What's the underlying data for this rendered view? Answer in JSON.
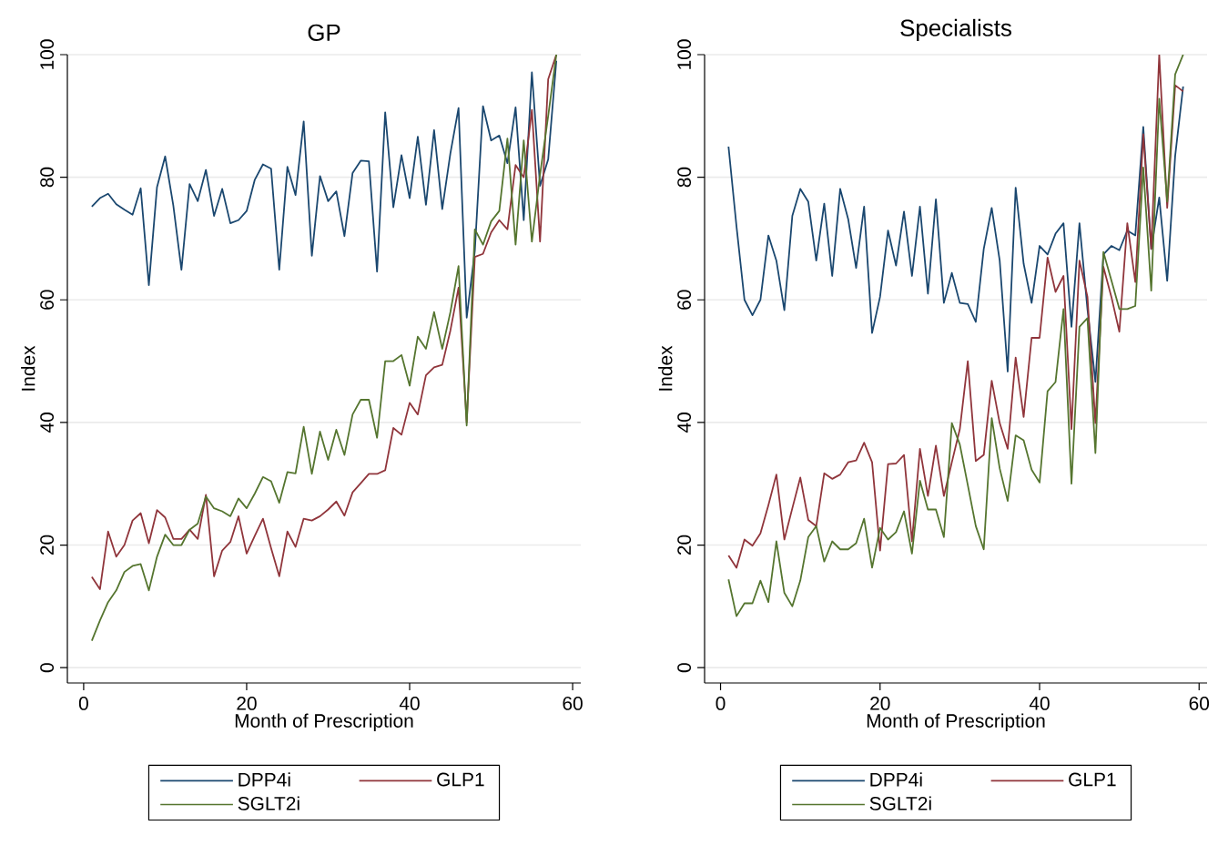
{
  "chart_data": [
    {
      "type": "line",
      "title": "GP",
      "xlabel": "Month of Prescription",
      "ylabel": "Index",
      "x": [
        1,
        2,
        3,
        4,
        5,
        6,
        7,
        8,
        9,
        10,
        11,
        12,
        13,
        14,
        15,
        16,
        17,
        18,
        19,
        20,
        21,
        22,
        23,
        24,
        25,
        26,
        27,
        28,
        29,
        30,
        31,
        32,
        33,
        34,
        35,
        36,
        37,
        38,
        39,
        40,
        41,
        42,
        43,
        44,
        45,
        46,
        47,
        48,
        49,
        50,
        51,
        52,
        53,
        54,
        55,
        56,
        57,
        58
      ],
      "series": [
        {
          "name": "DPP4i",
          "color": "#1a476f",
          "values": [
            75.2,
            76.6,
            77.3,
            75.6,
            74.7,
            73.9,
            78.2,
            62.4,
            78.4,
            83.4,
            75.4,
            64.9,
            78.9,
            76.1,
            81.2,
            73.7,
            78.1,
            72.5,
            73,
            74.5,
            79.6,
            82.1,
            81.4,
            64.9,
            81.7,
            77.1,
            89.1,
            67.2,
            80.2,
            76.1,
            77.7,
            70.4,
            80.7,
            82.7,
            82.6,
            64.6,
            90.6,
            75.1,
            83.6,
            76.6,
            86.6,
            75.5,
            87.7,
            74.8,
            83.9,
            91.3,
            57.1,
            68,
            91.6,
            86,
            86.8,
            82.3,
            91.4,
            73,
            97.1,
            78.6,
            82.9,
            99
          ]
        },
        {
          "name": "GLP1",
          "color": "#90353b",
          "values": [
            14.8,
            12.8,
            22.2,
            18.1,
            20,
            24,
            25.2,
            20.3,
            25.7,
            24.5,
            21,
            21,
            22.5,
            21,
            28.2,
            14.9,
            19.1,
            20.5,
            24.7,
            18.6,
            21.5,
            24.3,
            19.5,
            14.9,
            22.2,
            19.7,
            24.3,
            24,
            24.7,
            25.8,
            27.1,
            24.8,
            28.6,
            30.1,
            31.6,
            31.6,
            32.2,
            39.1,
            38,
            43.2,
            41.3,
            47.7,
            49,
            49.4,
            55,
            62,
            40,
            67,
            67.5,
            71,
            73,
            71.5,
            82,
            80,
            91,
            69.5,
            96,
            100
          ]
        },
        {
          "name": "SGLT2i",
          "color": "#55752f",
          "values": [
            4.4,
            7.7,
            10.7,
            12.6,
            15.6,
            16.6,
            16.9,
            12.6,
            18.1,
            21.7,
            20,
            20,
            22.5,
            23.5,
            27.9,
            26,
            25.5,
            24.7,
            27.6,
            26,
            28.4,
            31.1,
            30.4,
            26.9,
            31.9,
            31.7,
            39.3,
            31.6,
            38.5,
            33.9,
            38.8,
            34.7,
            41.3,
            43.7,
            43.7,
            37.5,
            50,
            50,
            51,
            46,
            54,
            52,
            58,
            52,
            58,
            65.5,
            39.5,
            71.5,
            69,
            72.8,
            74.5,
            86.3,
            69,
            86,
            69.5,
            80.4,
            90,
            100
          ]
        }
      ],
      "xlim": [
        -2,
        61
      ],
      "ylim": [
        -2.5,
        100
      ],
      "xticks": [
        0,
        20,
        40,
        60
      ],
      "yticks": [
        0,
        20,
        40,
        60,
        80,
        100
      ],
      "grid": "y",
      "legend": "bottom"
    },
    {
      "type": "line",
      "title": "Specialists",
      "xlabel": "Month of Prescription",
      "ylabel": "Index",
      "x": [
        1,
        2,
        3,
        4,
        5,
        6,
        7,
        8,
        9,
        10,
        11,
        12,
        13,
        14,
        15,
        16,
        17,
        18,
        19,
        20,
        21,
        22,
        23,
        24,
        25,
        26,
        27,
        28,
        29,
        30,
        31,
        32,
        33,
        34,
        35,
        36,
        37,
        38,
        39,
        40,
        41,
        42,
        43,
        44,
        45,
        46,
        47,
        48,
        49,
        50,
        51,
        52,
        53,
        54,
        55,
        56,
        57,
        58
      ],
      "series": [
        {
          "name": "DPP4i",
          "color": "#1a476f",
          "values": [
            85,
            72,
            60,
            57.5,
            60,
            70.5,
            66.4,
            58.3,
            73.7,
            78.1,
            76,
            66.4,
            75.7,
            63.9,
            78.1,
            73.2,
            65.2,
            75.2,
            54.6,
            60.5,
            71.3,
            65.6,
            74.4,
            63.9,
            75.2,
            61,
            76.4,
            59.5,
            64.4,
            59.5,
            59.3,
            56.4,
            68.3,
            75,
            66.4,
            48.3,
            78.3,
            65.9,
            59.5,
            68.8,
            67.4,
            70.8,
            72.5,
            55.6,
            72.5,
            58.5,
            46.6,
            67.4,
            68.8,
            68.1,
            71.3,
            70.5,
            88.2,
            68.3,
            76.7,
            63.1,
            83.5,
            94.8
          ]
        },
        {
          "name": "GLP1",
          "color": "#90353b",
          "values": [
            18.3,
            16.3,
            20.9,
            19.9,
            21.9,
            26.5,
            31.5,
            20.9,
            26,
            31,
            24.1,
            23.1,
            31.7,
            30.8,
            31.5,
            33.5,
            33.8,
            36.7,
            33.5,
            19.1,
            33.2,
            33.3,
            34.7,
            20.6,
            35.7,
            28,
            36.2,
            28,
            33.5,
            38.9,
            50,
            33.7,
            34.7,
            46.8,
            39.9,
            35.7,
            50.6,
            40.9,
            53.8,
            53.8,
            66.9,
            61.3,
            63.9,
            38.9,
            66.4,
            60.5,
            39.9,
            65.4,
            60.5,
            54.8,
            72.5,
            62.9,
            87,
            68.3,
            100,
            75,
            95,
            94
          ]
        },
        {
          "name": "SGLT2i",
          "color": "#55752f",
          "values": [
            14.4,
            8.4,
            10.5,
            10.5,
            14.2,
            10.7,
            20.6,
            12.2,
            10,
            14.2,
            21.3,
            23.1,
            17.3,
            20.6,
            19.3,
            19.3,
            20.3,
            24.3,
            16.3,
            22.8,
            20.9,
            22.1,
            25.5,
            18.6,
            30.5,
            25.8,
            25.8,
            21.3,
            39.9,
            36.4,
            29.8,
            23.1,
            19.3,
            40.7,
            32.5,
            27.2,
            37.9,
            37.1,
            32.3,
            30.2,
            45.1,
            46.6,
            58.5,
            30,
            55.6,
            57,
            35,
            67.8,
            63.2,
            58.5,
            58.5,
            59,
            81.6,
            61.5,
            92.8,
            76,
            96.8,
            100
          ]
        }
      ],
      "xlim": [
        -2,
        61
      ],
      "ylim": [
        -2.5,
        100
      ],
      "xticks": [
        0,
        20,
        40,
        60
      ],
      "yticks": [
        0,
        20,
        40,
        60,
        80,
        100
      ],
      "grid": "y",
      "legend": "bottom"
    }
  ]
}
